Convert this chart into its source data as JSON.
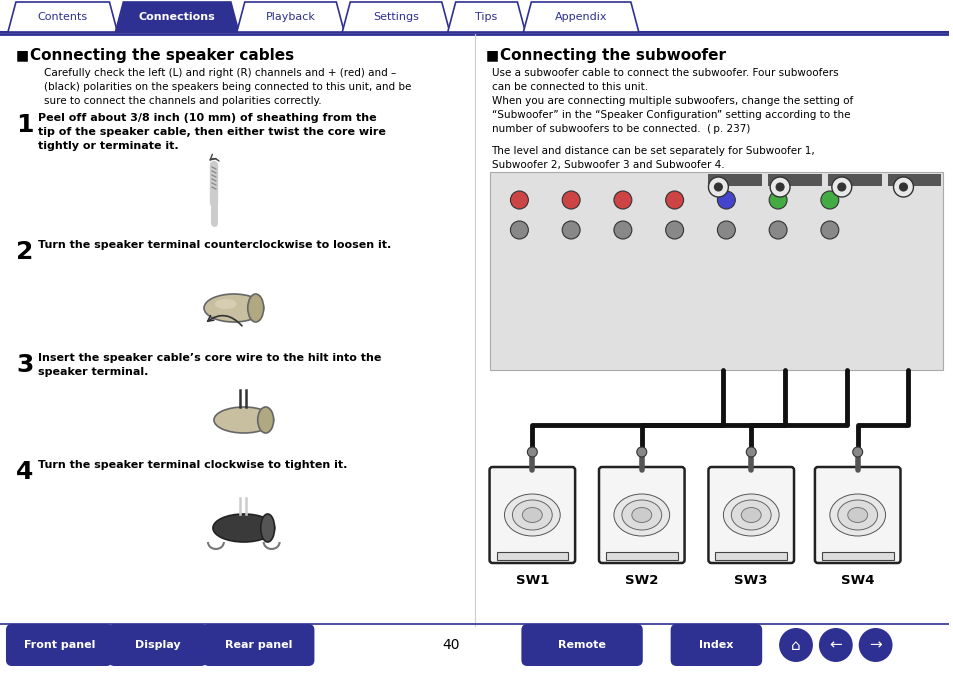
{
  "bg_color": "#ffffff",
  "tab_color_active": "#2e3192",
  "tab_color_inactive": "#ffffff",
  "tab_border_color": "#2e3192",
  "tab_text_active": "#ffffff",
  "tab_text_inactive": "#2e3192",
  "tabs": [
    "Contents",
    "Connections",
    "Playback",
    "Settings",
    "Tips",
    "Appendix"
  ],
  "active_tab": 1,
  "section_left_title": "Connecting the speaker cables",
  "section_right_title": "Connecting the subwoofer",
  "left_intro": "Carefully check the left (L) and right (R) channels and + (red) and –\n(black) polarities on the speakers being connected to this unit, and be\nsure to connect the channels and polarities correctly.",
  "steps": [
    {
      "num": "1",
      "text": "Peel off about 3/8 inch (10 mm) of sheathing from the\ntip of the speaker cable, then either twist the core wire\ntightly or terminate it."
    },
    {
      "num": "2",
      "text": "Turn the speaker terminal counterclockwise to loosen it."
    },
    {
      "num": "3",
      "text": "Insert the speaker cable’s core wire to the hilt into the\nspeaker terminal."
    },
    {
      "num": "4",
      "text": "Turn the speaker terminal clockwise to tighten it."
    }
  ],
  "right_intro1": "Use a subwoofer cable to connect the subwoofer. Four subwoofers\ncan be connected to this unit.",
  "right_intro2": "When you are connecting multiple subwoofers, change the setting of\n“Subwoofer” in the “Speaker Configuration” setting according to the\nnumber of subwoofers to be connected.  ( p. 237)",
  "right_intro3": "The level and distance can be set separately for Subwoofer 1,\nSubwoofer 2, Subwoofer 3 and Subwoofer 4.",
  "sw_labels": [
    "SW1",
    "SW2",
    "SW3",
    "SW4"
  ],
  "bottom_buttons_left": [
    "Front panel",
    "Display",
    "Rear panel"
  ],
  "page_number": "40",
  "bottom_buttons_right": [
    "Remote",
    "Index"
  ],
  "button_color": "#2e3192",
  "button_text_color": "#ffffff",
  "divider_color": "#2e3192",
  "body_text_color": "#000000",
  "title_text_color": "#000000"
}
